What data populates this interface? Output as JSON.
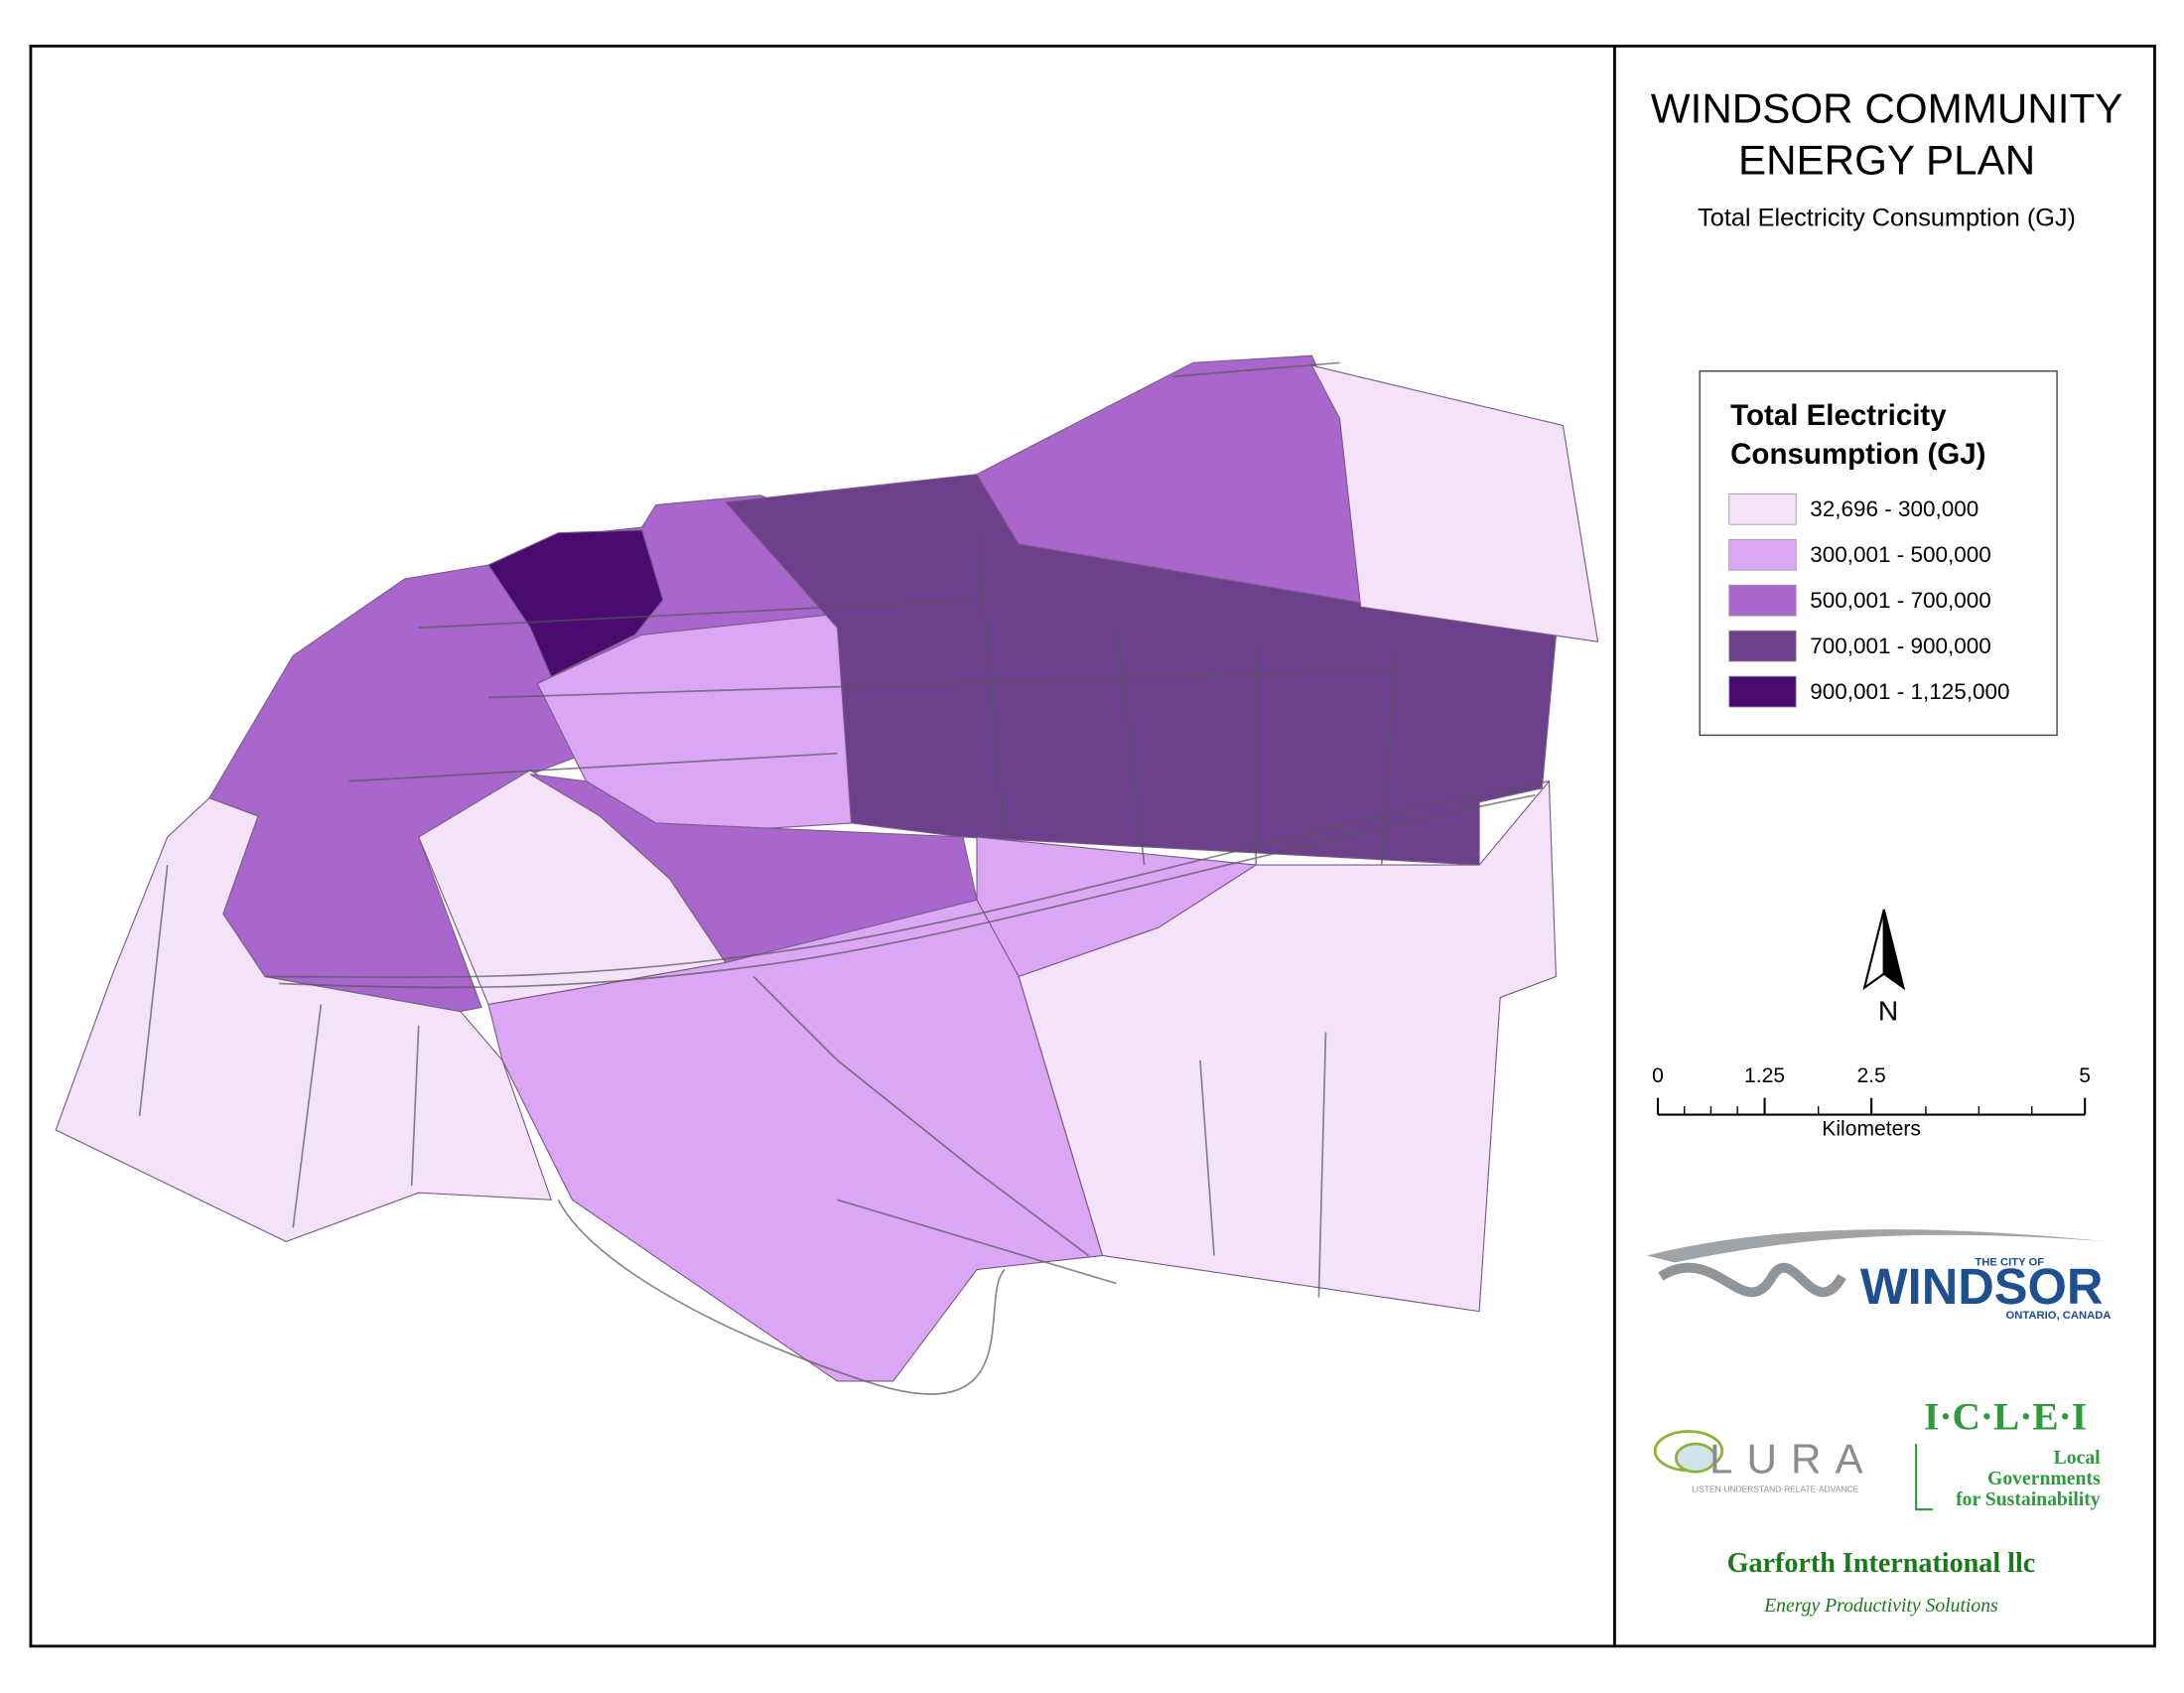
{
  "header": {
    "title_lines": [
      "WINDSOR COMMUNITY",
      "ENERGY PLAN"
    ],
    "subtitle": "Total Electricity Consumption (GJ)"
  },
  "legend": {
    "title_lines": [
      "Total Electricity",
      "Consumption (GJ)"
    ],
    "classes": [
      {
        "label": "32,696 - 300,000",
        "color": "#f3e2f8"
      },
      {
        "label": "300,001 - 500,000",
        "color": "#dba6f4"
      },
      {
        "label": "500,001 - 700,000",
        "color": "#a967cd"
      },
      {
        "label": "700,001 - 900,000",
        "color": "#6c408b"
      },
      {
        "label": "900,001 - 1,125,000",
        "color": "#4a0b6e"
      }
    ]
  },
  "north_arrow": {
    "label": "N"
  },
  "scale_bar": {
    "range": [
      0,
      5
    ],
    "ticks": [
      0,
      1.25,
      2.5,
      5
    ],
    "unit": "Kilometers"
  },
  "logos": {
    "windsor": {
      "small": "THE CITY OF",
      "name": "WINDSOR",
      "place": "ONTARIO, CANADA"
    },
    "lura": {
      "name": "LURA",
      "tagline": "LISTEN·UNDERSTAND·RELATE·ADVANCE"
    },
    "iclei": {
      "name": "I·C·L·E·I",
      "lines": [
        "Local",
        "Governments",
        "for Sustainability"
      ]
    },
    "garforth": {
      "name": "Garforth International llc",
      "tagline": "Energy Productivity Solutions"
    }
  }
}
